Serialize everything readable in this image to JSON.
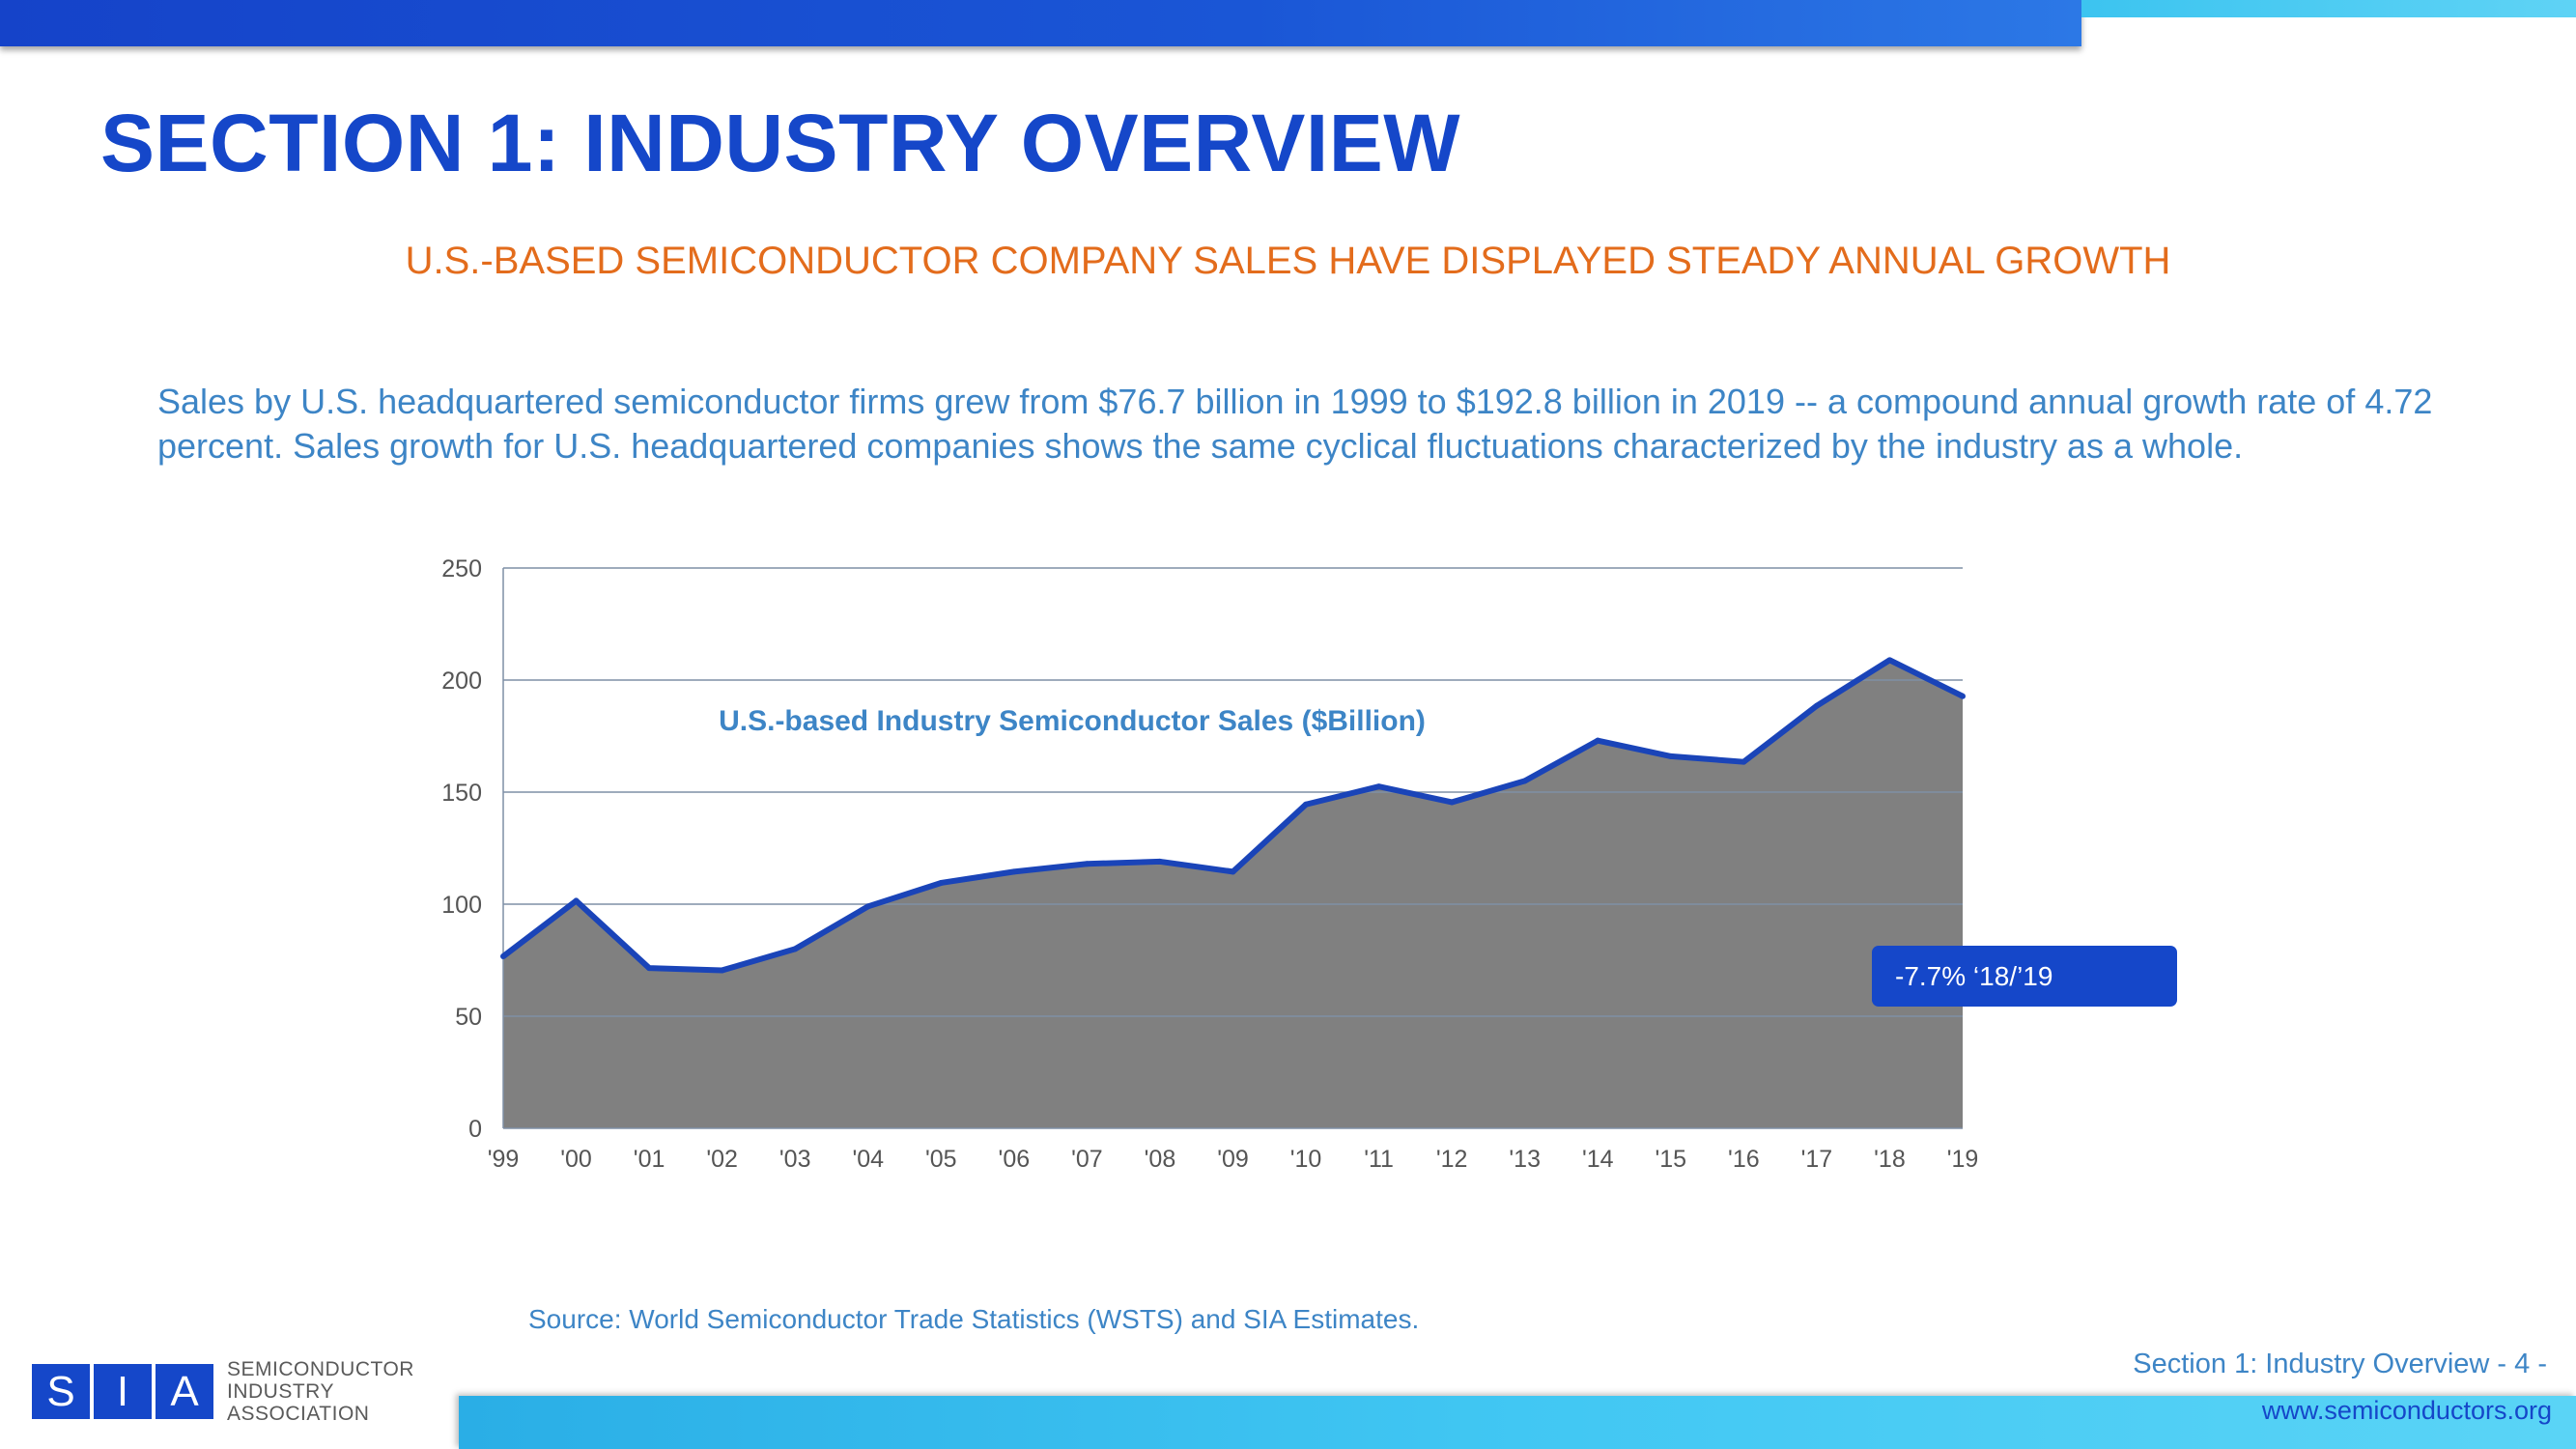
{
  "header": {
    "title": "SECTION 1: INDUSTRY OVERVIEW",
    "subtitle": "U.S.-BASED SEMICONDUCTOR COMPANY SALES HAVE DISPLAYED STEADY ANNUAL GROWTH"
  },
  "body_text": "Sales by U.S. headquartered semiconductor firms grew from $76.7 billion in 1999 to $192.8 billion in 2019 -- a compound annual growth rate of 4.72 percent. Sales growth for U.S. headquartered companies shows the same cyclical fluctuations characterized by the industry as a whole.",
  "chart_data": {
    "type": "area",
    "title": "U.S.-based Industry Semiconductor Sales ($Billion)",
    "categories": [
      "'99",
      "'00",
      "'01",
      "'02",
      "'03",
      "'04",
      "'05",
      "'06",
      "'07",
      "'08",
      "'09",
      "'10",
      "'11",
      "'12",
      "'13",
      "'14",
      "'15",
      "'16",
      "'17",
      "'18",
      "'19"
    ],
    "values": [
      76.7,
      101.5,
      71.5,
      70.5,
      80,
      99,
      109.5,
      114.5,
      118,
      119,
      114.5,
      144.5,
      152.5,
      145.5,
      155,
      173,
      166,
      163.5,
      188.5,
      208.9,
      192.8
    ],
    "ylim": [
      0,
      250
    ],
    "yticks": [
      0,
      50,
      100,
      150,
      200,
      250
    ],
    "xlabel": "",
    "ylabel": "",
    "grid": true,
    "colors": {
      "fill": "#808080",
      "line": "#1a44b8",
      "grid": "#7f8fa6",
      "axis_text": "#555555",
      "title": "#3d85c6"
    },
    "callout": "-7.7% ‘18/’19"
  },
  "source": "Source: World Semiconductor Trade Statistics (WSTS) and SIA Estimates.",
  "logo": {
    "letters": [
      "S",
      "I",
      "A"
    ],
    "line1": "SEMICONDUCTOR",
    "line2": "INDUSTRY",
    "line3": "ASSOCIATION"
  },
  "footer": {
    "section": "Section 1: Industry Overview - 4 -",
    "url": "www.semiconductors.org"
  }
}
